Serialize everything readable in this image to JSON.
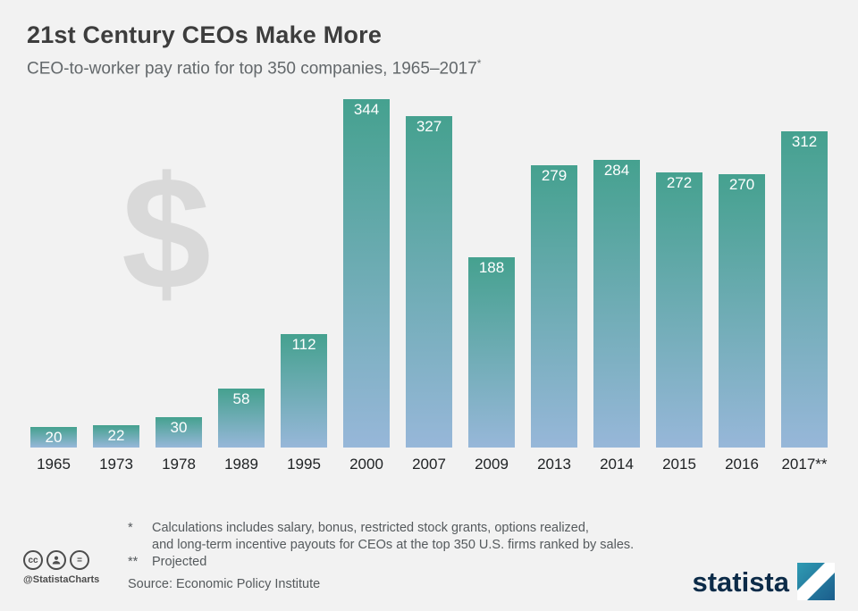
{
  "header": {
    "title": "21st Century CEOs Make More",
    "subtitle": "CEO-to-worker pay ratio for top 350 companies, 1965–2017",
    "subtitle_sup": "*"
  },
  "chart_data": {
    "type": "bar",
    "categories": [
      "1965",
      "1973",
      "1978",
      "1989",
      "1995",
      "2000",
      "2007",
      "2009",
      "2013",
      "2014",
      "2015",
      "2016",
      "2017**"
    ],
    "values": [
      20,
      22,
      30,
      58,
      112,
      344,
      327,
      188,
      279,
      284,
      272,
      270,
      312
    ],
    "title": "21st Century CEOs Make More",
    "xlabel": "",
    "ylabel": "CEO-to-worker pay ratio",
    "ylim": [
      0,
      360
    ],
    "grid": false,
    "legend": false,
    "watermark": "$",
    "colors": {
      "bar_top": "#45a18f",
      "bar_bottom": "#97b7d9",
      "value_label": "#ffffff",
      "background": "#f2f2f2",
      "watermark": "#d9d9d9"
    }
  },
  "footnotes": {
    "star_marker": "*",
    "star_line1": "Calculations includes salary, bonus, restricted stock grants, options realized,",
    "star_line2": "and long-term incentive payouts for CEOs at the top 350 U.S. firms ranked by sales.",
    "projected_marker": "**",
    "projected_text": "Projected",
    "source": "Source: Economic Policy Institute"
  },
  "attribution": {
    "handle": "@StatistaCharts",
    "cc_label": "cc",
    "equal_label": "="
  },
  "branding": {
    "logo_text": "statista"
  }
}
